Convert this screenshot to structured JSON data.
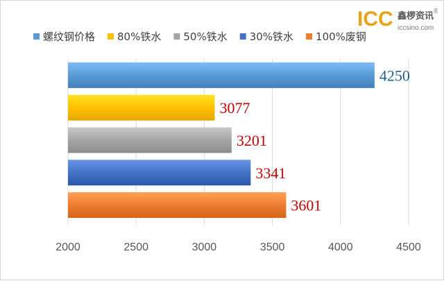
{
  "brand": {
    "name": "ICC",
    "cn_name": "鑫椤资讯",
    "url": "iccsino.com",
    "registered": "®"
  },
  "chart_data": {
    "type": "bar",
    "orientation": "horizontal",
    "title": "",
    "xlabel": "",
    "ylabel": "",
    "xlim": [
      2000,
      4500
    ],
    "xticks": [
      2000,
      2500,
      3000,
      3500,
      4000,
      4500
    ],
    "grid": true,
    "legend_position": "top",
    "series": [
      {
        "name": "螺纹钢价格",
        "value": 4250,
        "color": "#5b9bd5",
        "label_color": "#1f5f8b"
      },
      {
        "name": "80%铁水",
        "value": 3077,
        "color": "#ffc000",
        "label_color": "#c00000"
      },
      {
        "name": "50%铁水",
        "value": 3201,
        "color": "#a5a5a5",
        "label_color": "#c00000"
      },
      {
        "name": "30%铁水",
        "value": 3341,
        "color": "#4472c4",
        "label_color": "#c00000"
      },
      {
        "name": "100%废钢",
        "value": 3601,
        "color": "#ed7d31",
        "label_color": "#c00000"
      }
    ]
  }
}
